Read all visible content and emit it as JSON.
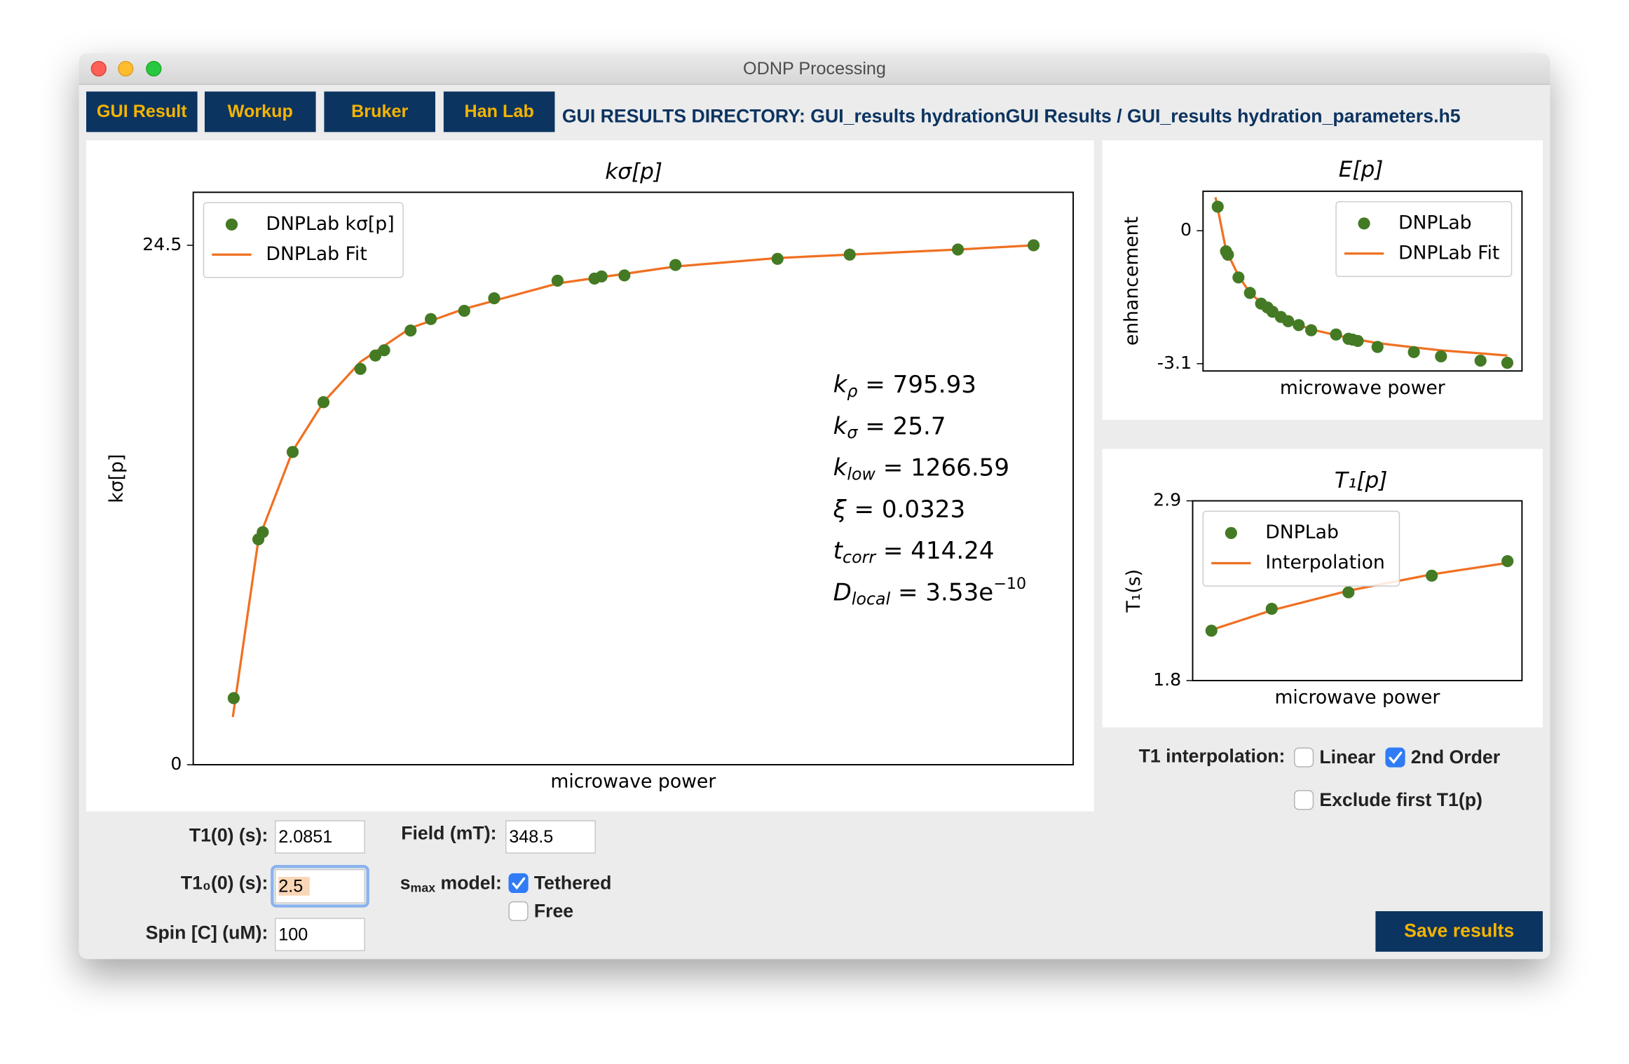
{
  "window_title": "ODNP Processing",
  "nav_buttons": [
    "GUI Result",
    "Workup",
    "Bruker",
    "Han Lab"
  ],
  "directory": "GUI RESULTS DIRECTORY: GUI_results hydrationGUI Results / GUI_results hydration_parameters.h5",
  "chart_data": [
    {
      "type": "scatter",
      "title": "kσ[p]",
      "xlabel": "microwave power",
      "ylabel": "kσ[p]",
      "xlim": [
        0,
        1
      ],
      "ylim": [
        0,
        27.0
      ],
      "yticks": [
        0,
        24.5
      ],
      "grid": false,
      "legend": "upper left",
      "series": [
        {
          "name": "DNPLab kσ[p]",
          "type": "scatter",
          "color": "#447a24",
          "x": [
            0.046,
            0.074,
            0.079,
            0.113,
            0.148,
            0.19,
            0.207,
            0.217,
            0.247,
            0.27,
            0.308,
            0.342,
            0.414,
            0.456,
            0.464,
            0.49,
            0.548,
            0.664,
            0.746,
            0.869,
            0.955
          ],
          "values": [
            3.14,
            10.63,
            10.97,
            14.75,
            17.1,
            18.67,
            19.3,
            19.55,
            20.48,
            21.02,
            21.41,
            22.0,
            22.83,
            22.93,
            23.03,
            23.08,
            23.57,
            23.86,
            24.06,
            24.3,
            24.5
          ]
        },
        {
          "name": "DNPLab Fit",
          "type": "line",
          "color": "#f07022",
          "x": [
            0.045,
            0.074,
            0.113,
            0.148,
            0.19,
            0.247,
            0.308,
            0.414,
            0.548,
            0.664,
            0.869,
            0.955
          ],
          "values": [
            2.25,
            10.6,
            14.8,
            17.1,
            19.0,
            20.6,
            21.5,
            22.7,
            23.5,
            23.9,
            24.3,
            24.5
          ]
        }
      ],
      "annotations": [
        {
          "symbol": "k",
          "sub": "ρ",
          "rest": " = 795.93"
        },
        {
          "symbol": "k",
          "sub": "σ",
          "rest": " = 25.7"
        },
        {
          "symbol": "k",
          "sub": "low",
          "rest": " = 1266.59"
        },
        {
          "symbol": "ξ",
          "rest": " = 0.0323"
        },
        {
          "symbol": "t",
          "sub": "corr",
          "rest": " = 414.24"
        },
        {
          "symbol": "D",
          "sub": "local",
          "rest": " = 3.53e",
          "sup": "−10"
        }
      ]
    },
    {
      "type": "scatter",
      "title": "E[p]",
      "xlabel": "microwave power",
      "ylabel": "enhancement",
      "xlim": [
        0,
        1
      ],
      "ylim": [
        -3.27,
        0.92
      ],
      "yticks": [
        -3.1,
        0
      ],
      "grid": false,
      "legend": "upper right",
      "series": [
        {
          "name": "DNPLab",
          "type": "scatter",
          "color": "#447a24",
          "x": [
            0.046,
            0.072,
            0.078,
            0.111,
            0.147,
            0.182,
            0.202,
            0.218,
            0.244,
            0.267,
            0.3,
            0.339,
            0.417,
            0.456,
            0.469,
            0.485,
            0.547,
            0.661,
            0.746,
            0.87,
            0.954
          ],
          "values": [
            0.56,
            -0.48,
            -0.56,
            -1.09,
            -1.45,
            -1.7,
            -1.79,
            -1.89,
            -2.01,
            -2.11,
            -2.2,
            -2.32,
            -2.42,
            -2.52,
            -2.54,
            -2.57,
            -2.71,
            -2.83,
            -2.93,
            -3.03,
            -3.08
          ]
        },
        {
          "name": "DNPLab Fit",
          "type": "line",
          "color": "#f07022",
          "x": [
            0.039,
            0.072,
            0.111,
            0.147,
            0.202,
            0.267,
            0.339,
            0.456,
            0.547,
            0.661,
            0.746,
            0.87,
            0.954
          ],
          "values": [
            0.78,
            -0.45,
            -1.05,
            -1.45,
            -1.8,
            -2.1,
            -2.3,
            -2.5,
            -2.62,
            -2.72,
            -2.79,
            -2.86,
            -2.91
          ]
        }
      ]
    },
    {
      "type": "scatter",
      "title": "T₁[p]",
      "xlabel": "microwave power",
      "ylabel": "T₁(s)",
      "xlim": [
        0,
        1
      ],
      "ylim": [
        1.8,
        2.9
      ],
      "yticks": [
        1.8,
        2.9
      ],
      "grid": false,
      "legend": "upper left",
      "series": [
        {
          "name": "DNPLab",
          "type": "scatter",
          "color": "#447a24",
          "x": [
            0.057,
            0.24,
            0.473,
            0.726,
            0.956
          ],
          "values": [
            2.105,
            2.239,
            2.34,
            2.442,
            2.531
          ]
        },
        {
          "name": "Interpolation",
          "type": "line",
          "color": "#f07022",
          "x": [
            0.057,
            0.24,
            0.473,
            0.726,
            0.956
          ],
          "values": [
            2.11,
            2.23,
            2.35,
            2.45,
            2.52
          ]
        }
      ]
    }
  ],
  "form": {
    "t1_0": {
      "label": "T1(0) (s):",
      "value": "2.0851"
    },
    "t10_0": {
      "label": "T1₀(0) (s):",
      "value": "2.5"
    },
    "spin": {
      "label": "Spin [C] (uM):",
      "value": "100"
    },
    "field": {
      "label": "Field (mT):",
      "value": "348.5"
    },
    "smax": {
      "label": "s",
      "sub": "max",
      "rest": " model:",
      "options": [
        {
          "label": "Tethered",
          "checked": true
        },
        {
          "label": "Free",
          "checked": false
        }
      ]
    }
  },
  "interpolation": {
    "label": "T1 interpolation:",
    "options": [
      {
        "label": "Linear",
        "checked": false
      },
      {
        "label": "2nd Order",
        "checked": true
      },
      {
        "label": "Exclude first T1(p)",
        "checked": false
      }
    ]
  },
  "save_button": "Save results"
}
